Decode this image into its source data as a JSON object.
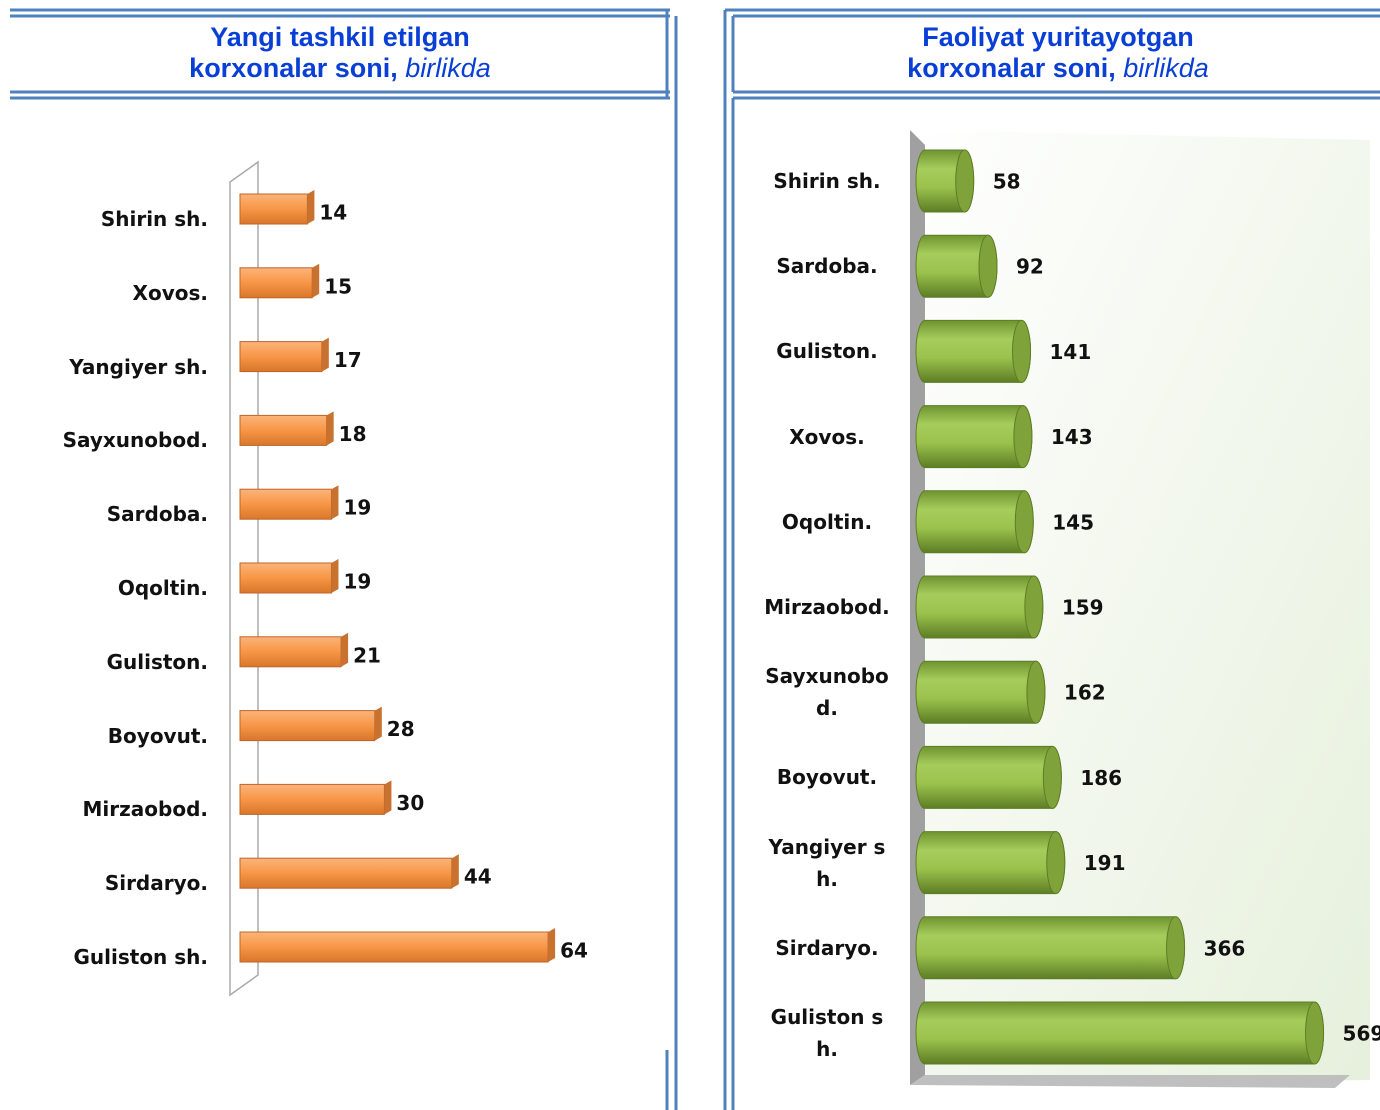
{
  "chart_data": [
    {
      "type": "bar",
      "orientation": "horizontal",
      "title": [
        "Yangi tashkil etilgan",
        "korxonalar soni,"
      ],
      "subtitle": "birlikda",
      "categories": [
        "Shirin sh.",
        "Xovos.",
        "Yangiyer sh.",
        "Sayxunobod.",
        "Sardoba.",
        "Oqoltin.",
        "Guliston.",
        "Boyovut.",
        "Mirzaobod.",
        "Sirdaryo.",
        "Guliston sh."
      ],
      "values": [
        14,
        15,
        17,
        18,
        19,
        19,
        21,
        28,
        30,
        44,
        64
      ],
      "color": "#f79646",
      "xlim": [
        0,
        70
      ]
    },
    {
      "type": "bar",
      "orientation": "horizontal",
      "title": [
        "Faoliyat yuritayotgan",
        "korxonalar soni,"
      ],
      "subtitle": "birlikda",
      "categories": [
        "Shirin sh.",
        "Sardoba.",
        "Guliston.",
        "Xovos.",
        "Oqoltin.",
        "Mirzaobod.",
        "Sayxunobod.",
        "Boyovut.",
        "Yangiyer sh.",
        "Sirdaryo.",
        "Guliston sh."
      ],
      "values": [
        58,
        92,
        141,
        143,
        145,
        159,
        162,
        186,
        191,
        366,
        569
      ],
      "color": "#8cb43c",
      "xlim": [
        0,
        650
      ]
    }
  ]
}
